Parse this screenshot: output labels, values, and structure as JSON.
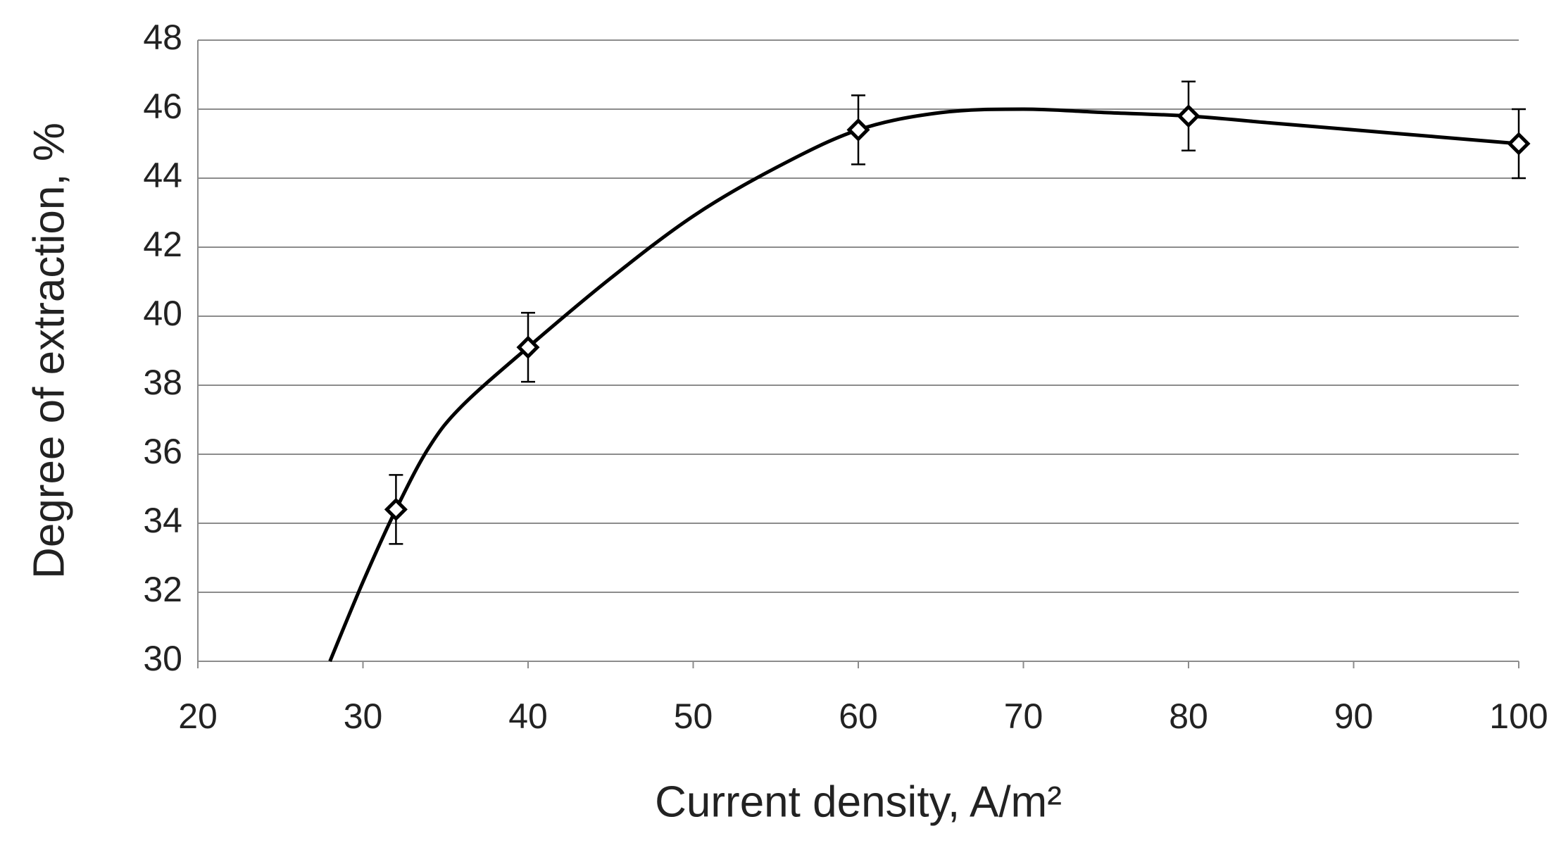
{
  "chart_data": {
    "type": "line",
    "x_label": "Current density, A/m²",
    "y_label": "Degree of extraction, %",
    "xlim": [
      20,
      100
    ],
    "xticks": [
      20,
      30,
      40,
      50,
      60,
      70,
      80,
      90,
      100
    ],
    "ylim": [
      30,
      48
    ],
    "yticks": [
      30,
      32,
      34,
      36,
      38,
      40,
      42,
      44,
      46,
      48
    ],
    "grid": true,
    "series": [
      {
        "x": [
          32,
          40,
          60,
          80,
          100
        ],
        "values": [
          34.4,
          39.1,
          45.4,
          45.8,
          45.0
        ],
        "errors": [
          1,
          1,
          1,
          1,
          1
        ],
        "marker": "diamond",
        "color": "#000000"
      },
      {
        "x": [
          28,
          30,
          32,
          34,
          36,
          40,
          45,
          50,
          55,
          60,
          65,
          70,
          75,
          80,
          85,
          90,
          95,
          100
        ],
        "values": [
          30,
          32.3,
          34.4,
          36.2,
          37.4,
          39.1,
          41.1,
          42.9,
          44.3,
          45.4,
          45.9,
          46.0,
          45.9,
          45.8,
          45.6,
          45.4,
          45.2,
          45.0
        ],
        "color": "#000000"
      }
    ]
  }
}
